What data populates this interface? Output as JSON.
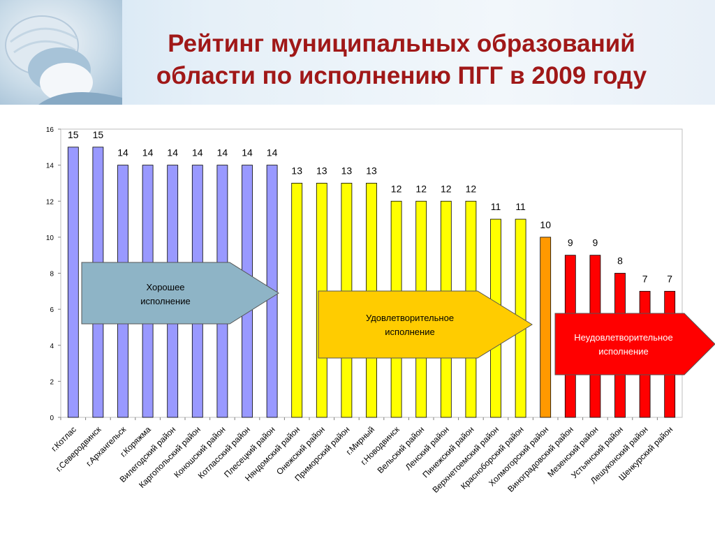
{
  "title_line1": "Рейтинг муниципальных образований",
  "title_line2": "области по исполнению ПГГ в 2009 году",
  "chart_data": {
    "type": "bar",
    "ylim": [
      0,
      16
    ],
    "yticks": [
      0,
      2,
      4,
      6,
      8,
      10,
      12,
      14,
      16
    ],
    "grid": false,
    "categories": [
      "г.Котлас",
      "г.Северодвинск",
      "г.Архангельск",
      "г.Коряжма",
      "Вилегодский район",
      "Каргопольский район",
      "Коношский район",
      "Котласский район",
      "Плесецкий район",
      "Няндомский район",
      "Онежский район",
      "Приморский район",
      "г.Мирный",
      "г.Новодвинск",
      "Вельский район",
      "Ленский район",
      "Пинежский район",
      "Верхнетоемский район",
      "Красноборский район",
      "Холмогорский район",
      "Виноградовский район",
      "Мезенский район",
      "Устьянский район",
      "Лешуконский район",
      "Шенкурский район"
    ],
    "values": [
      15,
      15,
      14,
      14,
      14,
      14,
      14,
      14,
      14,
      13,
      13,
      13,
      13,
      12,
      12,
      12,
      12,
      11,
      11,
      10,
      9,
      9,
      8,
      7,
      7
    ],
    "bar_colors": [
      "#9999ff",
      "#9999ff",
      "#9999ff",
      "#9999ff",
      "#9999ff",
      "#9999ff",
      "#9999ff",
      "#9999ff",
      "#9999ff",
      "#ffff00",
      "#ffff00",
      "#ffff00",
      "#ffff00",
      "#ffff00",
      "#ffff00",
      "#ffff00",
      "#ffff00",
      "#ffff00",
      "#ffff00",
      "#ff9900",
      "#ff0000",
      "#ff0000",
      "#ff0000",
      "#ff0000",
      "#ff0000"
    ],
    "annotations": [
      {
        "line1": "Хорошее",
        "line2": "исполнение",
        "color": "#8eb4c6",
        "text_color": "#000000"
      },
      {
        "line1": "Удовлетворительное",
        "line2": "исполнение",
        "color": "#ffcc00",
        "text_color": "#000000"
      },
      {
        "line1": "Неудовлетворительное",
        "line2": "исполнение",
        "color": "#ff0000",
        "text_color": "#ffffff"
      }
    ]
  }
}
